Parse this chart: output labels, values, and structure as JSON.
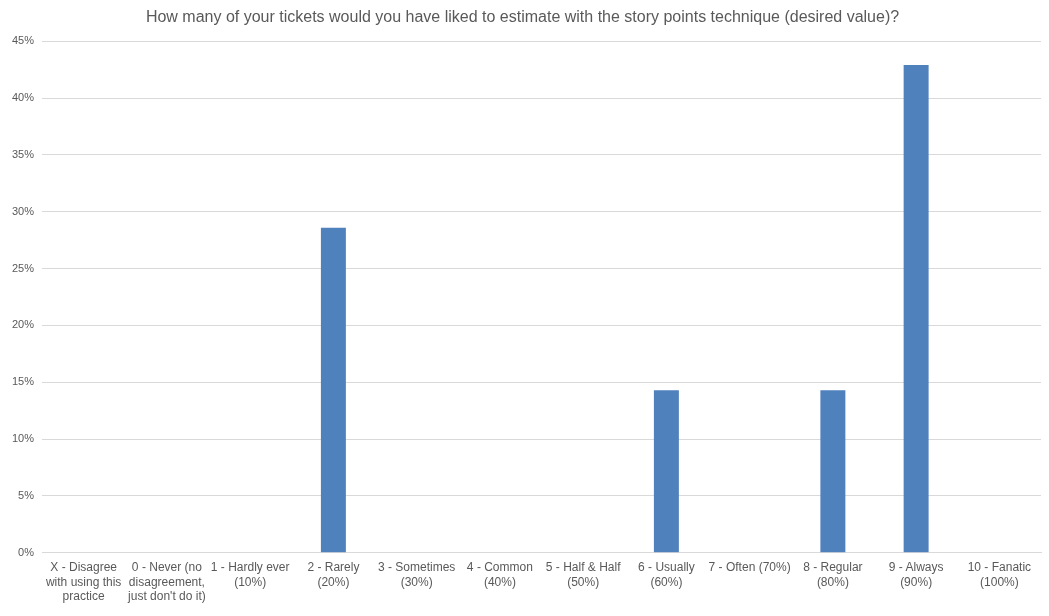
{
  "chart_data": {
    "type": "bar",
    "title": "How many of your tickets would you have liked to estimate with the story points technique (desired value)?",
    "categories": [
      "X - Disagree with using this practice",
      "0 - Never (no disagreement, just don't do it)",
      "1 - Hardly ever (10%)",
      "2 - Rarely (20%)",
      "3 - Sometimes (30%)",
      "4 - Common (40%)",
      "5 - Half & Half (50%)",
      "6 - Usually (60%)",
      "7 - Often (70%)",
      "8 - Regular (80%)",
      "9 - Always (90%)",
      "10 - Fanatic (100%)"
    ],
    "values": [
      0,
      0,
      0,
      28.6,
      0,
      0,
      0,
      14.3,
      0,
      14.3,
      42.9,
      0
    ],
    "color": "#4f81bd",
    "ylim": [
      0,
      45
    ],
    "yticks": [
      {
        "value": 0,
        "label": "0%"
      },
      {
        "value": 5,
        "label": "5%"
      },
      {
        "value": 10,
        "label": "10%"
      },
      {
        "value": 15,
        "label": "15%"
      },
      {
        "value": 20,
        "label": "20%"
      },
      {
        "value": 25,
        "label": "25%"
      },
      {
        "value": 30,
        "label": "30%"
      },
      {
        "value": 35,
        "label": "35%"
      },
      {
        "value": 40,
        "label": "40%"
      },
      {
        "value": 45,
        "label": "45%"
      }
    ],
    "grid": "y",
    "legend": false
  }
}
